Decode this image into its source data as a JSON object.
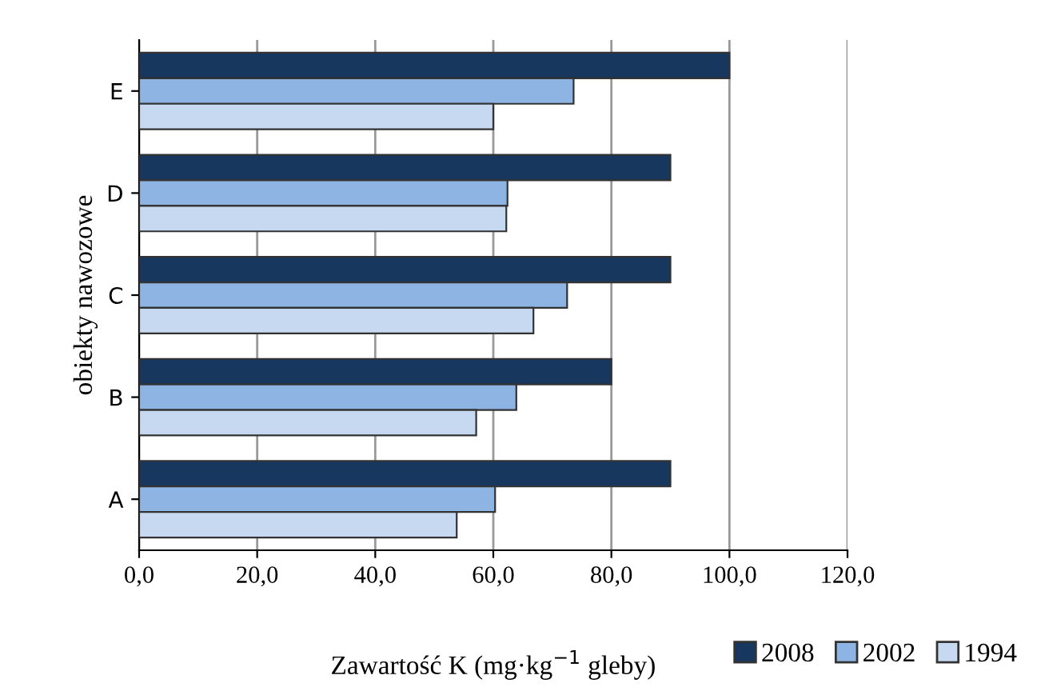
{
  "chart_data": {
    "type": "bar",
    "orientation": "horizontal",
    "xlabel": "Zawartość K (mg·kg$^{−1}$ gleby)",
    "ylabel": "obiekty nawozowe",
    "categories": [
      "E",
      "D",
      "C",
      "B",
      "A"
    ],
    "series": [
      {
        "name": "2008",
        "color": "#17375e",
        "values": [
          100,
          90,
          90,
          80,
          90
        ]
      },
      {
        "name": "2002",
        "color": "#8eb4e3",
        "values": [
          73.6,
          62.4,
          72.5,
          63.9,
          60.3
        ]
      },
      {
        "name": "1994",
        "color": "#c6d9f1",
        "values": [
          60,
          62.2,
          66.8,
          57.1,
          53.8
        ]
      }
    ],
    "xlim": [
      0,
      120
    ],
    "xticks": [
      {
        "value": 0,
        "label": "0,0"
      },
      {
        "value": 20,
        "label": "20,0"
      },
      {
        "value": 40,
        "label": "40,0"
      },
      {
        "value": 60,
        "label": "60,0"
      },
      {
        "value": 80,
        "label": "80,0"
      },
      {
        "value": 100,
        "label": "100,0"
      },
      {
        "value": 120,
        "label": "120,0"
      }
    ],
    "grid": "x",
    "legend": "bottom right"
  }
}
